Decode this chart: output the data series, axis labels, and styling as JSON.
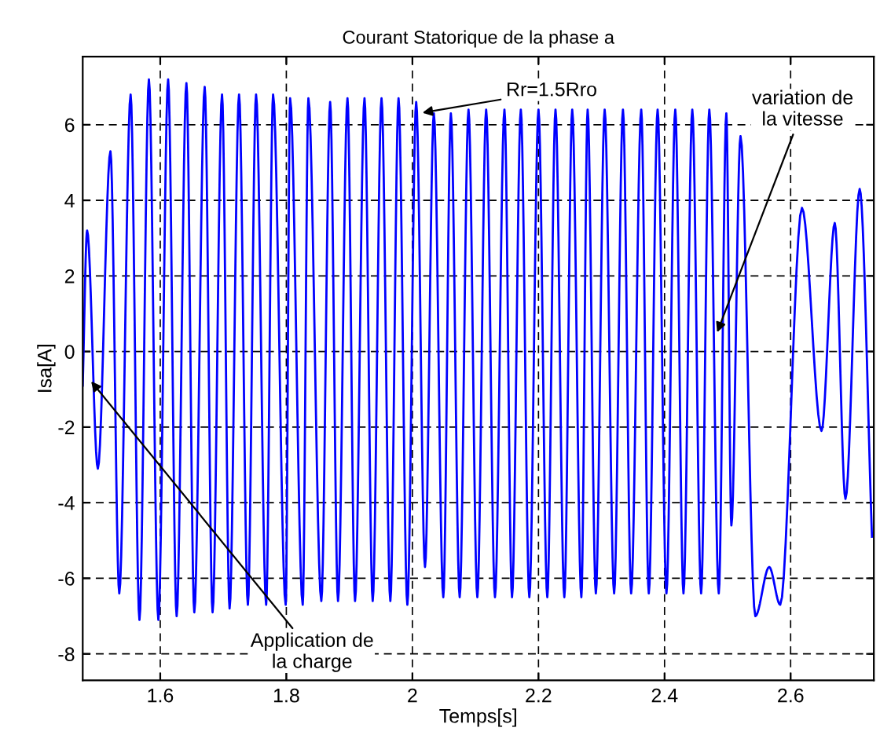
{
  "chart_data": {
    "type": "line",
    "title": "Courant Statorique de la phase a",
    "xlabel": "Temps[s]",
    "ylabel": "Isa[A]",
    "x": [
      1.477,
      1.484,
      1.501,
      1.521,
      1.535,
      1.553,
      1.567,
      1.582,
      1.597,
      1.6125,
      1.626,
      1.6415,
      1.654,
      1.6705,
      1.683,
      1.698,
      1.71,
      1.725,
      1.739,
      1.752,
      1.768,
      1.779,
      1.799,
      1.806,
      1.826,
      1.835,
      1.8555,
      1.8695,
      1.882,
      1.897,
      1.909,
      1.924,
      1.937,
      1.951,
      1.965,
      1.978,
      1.992,
      2.006,
      2.02,
      2.034,
      2.049,
      2.061,
      2.075,
      2.089,
      2.103,
      2.117,
      2.131,
      2.146,
      2.158,
      2.172,
      2.1855,
      2.2,
      2.214,
      2.227,
      2.241,
      2.2535,
      2.268,
      2.278,
      2.291,
      2.305,
      2.32,
      2.334,
      2.347,
      2.363,
      2.375,
      2.389,
      2.403,
      2.417,
      2.43,
      2.444,
      2.458,
      2.471,
      2.486,
      2.498,
      2.506,
      2.5205,
      2.544,
      2.566,
      2.5835,
      2.618,
      2.649,
      2.67,
      2.687,
      2.7095,
      2.729
    ],
    "series": [
      {
        "color": "#0000ff",
        "values": [
          -0.9,
          3.2,
          -3.1,
          5.3,
          -6.4,
          6.8,
          -7.1,
          7.2,
          -7.1,
          7.2,
          -7.0,
          7.1,
          -6.9,
          7.0,
          -6.9,
          6.8,
          -6.8,
          6.8,
          -6.7,
          6.8,
          -6.7,
          6.8,
          -6.7,
          6.7,
          -6.7,
          6.7,
          -6.6,
          6.6,
          -6.6,
          6.7,
          -6.6,
          6.7,
          -6.6,
          6.7,
          -6.6,
          6.7,
          -6.7,
          6.6,
          -5.7,
          6.3,
          -6.5,
          6.3,
          -6.5,
          6.4,
          -6.5,
          6.4,
          -6.5,
          6.4,
          -6.5,
          6.4,
          -6.5,
          6.4,
          -6.5,
          6.4,
          -6.5,
          6.4,
          -6.5,
          6.4,
          -6.4,
          6.4,
          -6.4,
          6.4,
          -6.4,
          6.4,
          -6.4,
          6.4,
          -6.4,
          6.4,
          -6.4,
          6.4,
          -6.4,
          6.4,
          -6.4,
          6.3,
          -4.6,
          5.7,
          -7.0,
          -5.7,
          -6.7,
          3.8,
          -2.1,
          3.4,
          -3.9,
          4.3,
          -4.9
        ]
      }
    ],
    "xlim": [
      1.477,
      2.732
    ],
    "ylim": [
      -8.7,
      7.8
    ],
    "xticks": [
      1.6,
      1.8,
      2,
      2.2,
      2.4,
      2.6
    ],
    "yticks": [
      -8,
      -6,
      -4,
      -2,
      0,
      2,
      4,
      6
    ],
    "grid": true,
    "line_style": "solid",
    "marker": "none",
    "legend": false,
    "annotations": [
      {
        "text": "Application de\nla charge",
        "x": 1.486,
        "y": -0.7
      },
      {
        "text": "Rr=1.5Rro",
        "x": 2.009,
        "y": 6.3
      },
      {
        "text": "variation de\nla vitesse",
        "x": 2.481,
        "y": 0.4
      }
    ]
  }
}
